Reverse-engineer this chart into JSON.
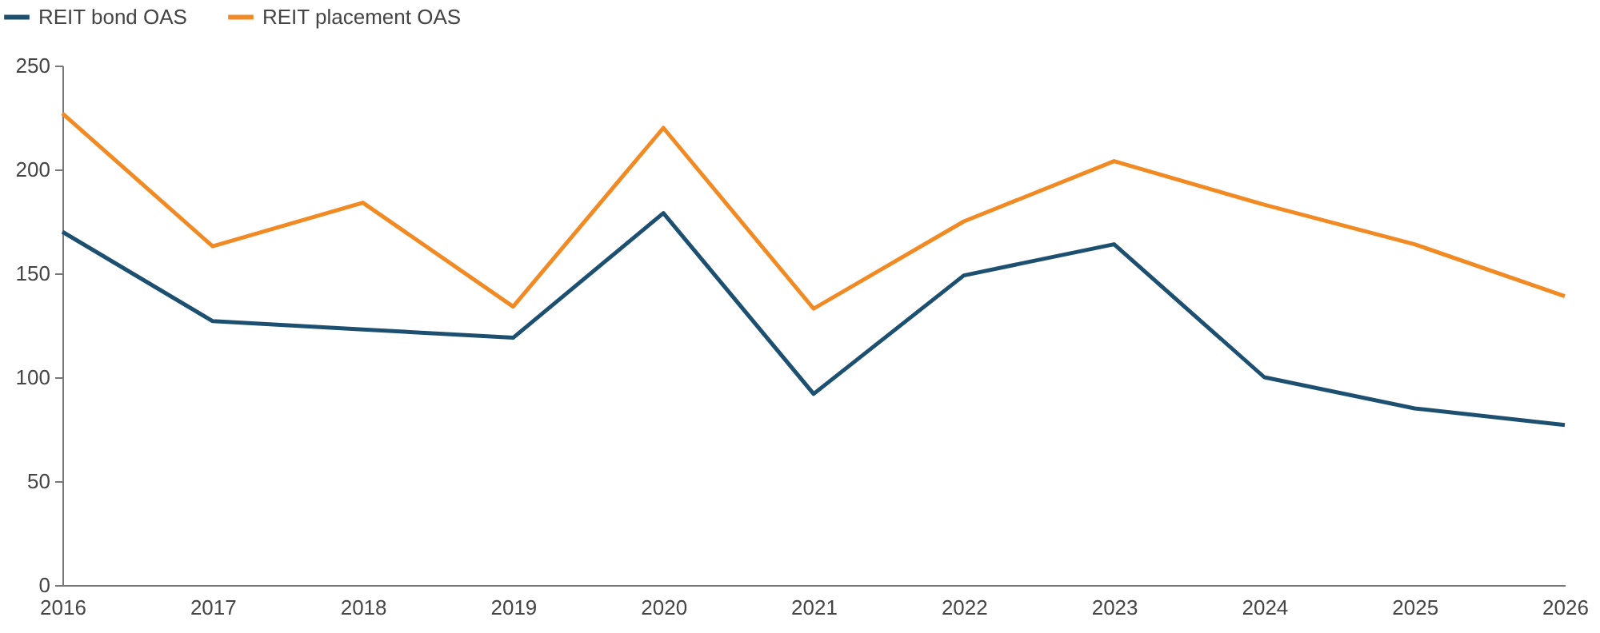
{
  "chart_data": {
    "type": "line",
    "categories": [
      "2016",
      "2017",
      "2018",
      "2019",
      "2020",
      "2021",
      "2022",
      "2023",
      "2024",
      "2025",
      "2026"
    ],
    "series": [
      {
        "name": "REIT bond OAS",
        "color": "#1d5070",
        "values": [
          170,
          127,
          123,
          119,
          179,
          92,
          149,
          164,
          100,
          85,
          77
        ]
      },
      {
        "name": "REIT placement OAS",
        "color": "#f28a24",
        "values": [
          227,
          163,
          184,
          134,
          220,
          133,
          175,
          204,
          183,
          164,
          139
        ]
      }
    ],
    "ylim": [
      0,
      250
    ],
    "yticks": [
      0,
      50,
      100,
      150,
      200,
      250
    ],
    "grid": false,
    "legend": "top left",
    "marker": "none",
    "line_style": "solid"
  }
}
